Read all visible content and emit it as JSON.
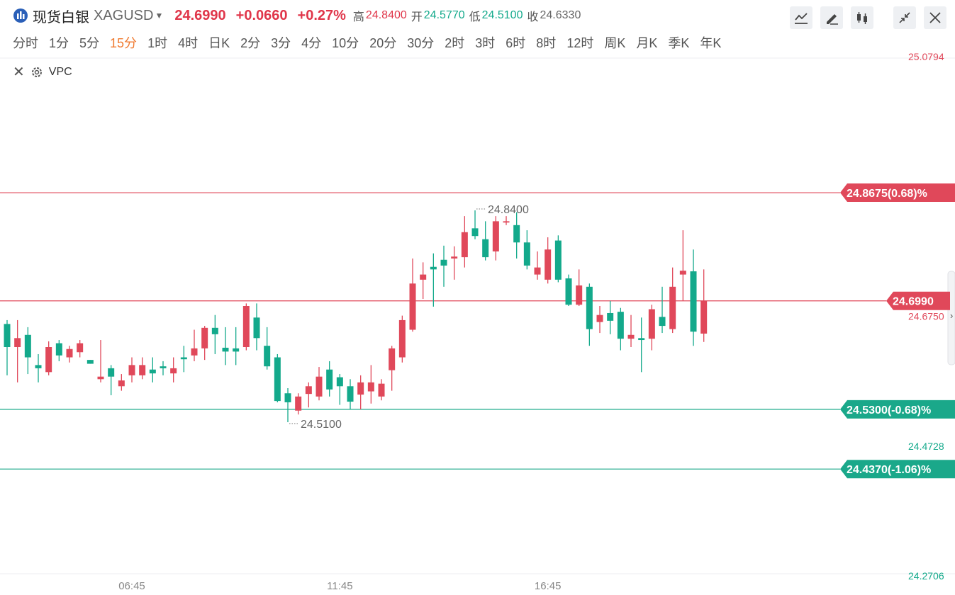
{
  "header": {
    "title": "现货白银",
    "symbol": "XAGUSD",
    "price": "24.6990",
    "change": "+0.0660",
    "change_pct": "+0.27%",
    "high_label": "高",
    "high": "24.8400",
    "open_label": "开",
    "open": "24.5770",
    "low_label": "低",
    "low": "24.5100",
    "close_label": "收",
    "prev_close": "24.6330"
  },
  "timeframes": [
    "分时",
    "1分",
    "5分",
    "15分",
    "1时",
    "4时",
    "日K",
    "2分",
    "3分",
    "4分",
    "10分",
    "20分",
    "30分",
    "2时",
    "3时",
    "6时",
    "8时",
    "12时",
    "周K",
    "月K",
    "季K",
    "年K"
  ],
  "active_timeframe": "15分",
  "indicator": "VPC",
  "chart_data": {
    "type": "candlestick",
    "categories": [
      null,
      null,
      null,
      null,
      null,
      null,
      null,
      null,
      null,
      null,
      null,
      null,
      "06:45",
      null,
      null,
      null,
      null,
      null,
      null,
      null,
      null,
      null,
      null,
      null,
      null,
      null,
      null,
      null,
      null,
      null,
      null,
      null,
      "11:45",
      null,
      null,
      null,
      null,
      null,
      null,
      null,
      null,
      null,
      null,
      null,
      null,
      null,
      null,
      null,
      null,
      null,
      null,
      null,
      "16:45",
      null,
      null,
      null,
      null,
      null,
      null,
      null,
      null,
      null,
      null,
      null,
      null,
      null,
      null,
      null
    ],
    "open": [
      24.663,
      24.627,
      24.646,
      24.599,
      24.588,
      24.633,
      24.611,
      24.619,
      24.607,
      24.577,
      24.594,
      24.566,
      24.583,
      24.583,
      24.592,
      24.597,
      24.586,
      24.611,
      24.614,
      24.625,
      24.657,
      24.626,
      24.625,
      24.627,
      24.673,
      24.629,
      24.611,
      24.555,
      24.528,
      24.554,
      24.55,
      24.592,
      24.58,
      24.566,
      24.553,
      24.558,
      24.55,
      24.591,
      24.611,
      24.654,
      24.732,
      24.752,
      24.763,
      24.765,
      24.767,
      24.812,
      24.795,
      24.776,
      24.821,
      24.817,
      24.79,
      24.74,
      24.732,
      24.793,
      24.734,
      24.693,
      24.721,
      24.666,
      24.68,
      24.682,
      24.64,
      24.641,
      24.64,
      24.674,
      24.655,
      24.74,
      24.745,
      24.648
    ],
    "high": [
      24.669,
      24.669,
      24.658,
      24.616,
      24.636,
      24.638,
      24.629,
      24.638,
      24.607,
      24.638,
      24.599,
      24.585,
      24.611,
      24.611,
      24.611,
      24.605,
      24.611,
      24.629,
      24.654,
      24.66,
      24.677,
      24.658,
      24.658,
      24.695,
      24.695,
      24.658,
      24.616,
      24.563,
      24.555,
      24.572,
      24.596,
      24.605,
      24.585,
      24.577,
      24.583,
      24.599,
      24.577,
      24.629,
      24.676,
      24.765,
      24.759,
      24.773,
      24.785,
      24.784,
      24.831,
      24.84,
      24.823,
      24.831,
      24.831,
      24.837,
      24.809,
      24.776,
      24.798,
      24.801,
      24.74,
      24.748,
      24.726,
      24.691,
      24.699,
      24.688,
      24.677,
      24.673,
      24.693,
      24.721,
      24.751,
      24.809,
      24.779,
      24.748
    ],
    "low": [
      24.583,
      24.572,
      24.585,
      24.572,
      24.583,
      24.605,
      24.603,
      24.611,
      24.601,
      24.572,
      24.552,
      24.559,
      24.572,
      24.577,
      24.572,
      24.583,
      24.572,
      24.588,
      24.605,
      24.607,
      24.616,
      24.599,
      24.599,
      24.622,
      24.622,
      24.592,
      24.541,
      24.51,
      24.522,
      24.533,
      24.544,
      24.55,
      24.537,
      24.53,
      24.53,
      24.539,
      24.544,
      24.559,
      24.603,
      24.651,
      24.702,
      24.69,
      24.721,
      24.732,
      24.751,
      24.795,
      24.762,
      24.762,
      24.817,
      24.765,
      24.748,
      24.732,
      24.726,
      24.728,
      24.691,
      24.691,
      24.629,
      24.649,
      24.647,
      24.622,
      24.627,
      24.588,
      24.622,
      24.649,
      24.649,
      24.699,
      24.629,
      24.635
    ],
    "close": [
      24.627,
      24.641,
      24.611,
      24.594,
      24.627,
      24.614,
      24.624,
      24.633,
      24.601,
      24.581,
      24.581,
      24.575,
      24.599,
      24.599,
      24.586,
      24.594,
      24.594,
      24.608,
      24.625,
      24.657,
      24.647,
      24.62,
      24.62,
      24.691,
      24.641,
      24.597,
      24.543,
      24.541,
      24.55,
      24.566,
      24.581,
      24.561,
      24.566,
      24.542,
      24.572,
      24.572,
      24.57,
      24.625,
      24.669,
      24.726,
      24.74,
      24.748,
      24.754,
      24.768,
      24.806,
      24.8,
      24.767,
      24.823,
      24.823,
      24.79,
      24.754,
      24.751,
      24.779,
      24.732,
      24.693,
      24.723,
      24.655,
      24.677,
      24.668,
      24.64,
      24.646,
      24.638,
      24.686,
      24.66,
      24.721,
      24.746,
      24.651,
      24.699
    ],
    "up_color": "#e0485a",
    "down_color": "#13a98b",
    "ylim": [
      24.2706,
      25.0794
    ],
    "yticks": [
      25.0794,
      {
        "value": 24.675,
        "label": "24.6750"
      },
      24.4728,
      24.2706
    ],
    "grid": false,
    "price_lines": [
      {
        "value": 24.8675,
        "label": "24.8675(0.68)%",
        "color": "#e0485a"
      },
      {
        "value": 24.53,
        "label": "24.5300(-0.68)%",
        "color": "#1aa88a"
      },
      {
        "value": 24.437,
        "label": "24.4370(-1.06)%",
        "color": "#1aa88a"
      }
    ],
    "last_price": {
      "value": 24.699,
      "label": "24.6990",
      "color": "#e0485a"
    },
    "high_marker": {
      "value": 24.84,
      "label": "24.8400"
    },
    "low_marker": {
      "value": 24.51,
      "label": "24.5100"
    }
  }
}
